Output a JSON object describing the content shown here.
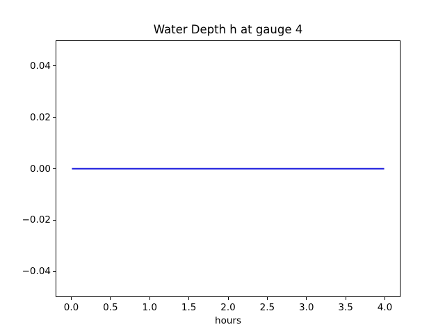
{
  "chart_data": {
    "type": "line",
    "title": "Water Depth h at gauge 4",
    "xlabel": "hours",
    "ylabel": "",
    "xlim": [
      -0.2,
      4.2
    ],
    "ylim": [
      -0.05,
      0.05
    ],
    "xticks": [
      0.0,
      0.5,
      1.0,
      1.5,
      2.0,
      2.5,
      3.0,
      3.5,
      4.0
    ],
    "xtick_labels": [
      "0.0",
      "0.5",
      "1.0",
      "1.5",
      "2.0",
      "2.5",
      "3.0",
      "3.5",
      "4.0"
    ],
    "yticks": [
      -0.04,
      -0.02,
      0.0,
      0.02,
      0.04
    ],
    "ytick_labels": [
      "−0.04",
      "−0.02",
      "0.00",
      "0.02",
      "0.04"
    ],
    "grid": false,
    "legend": false,
    "background_color": "#ffffff",
    "axes_color": "#000000",
    "series": [
      {
        "x": [
          0.0,
          4.0
        ],
        "y": [
          0.0,
          0.0
        ],
        "color": "#0b0bdb",
        "linewidth": 2
      }
    ]
  }
}
